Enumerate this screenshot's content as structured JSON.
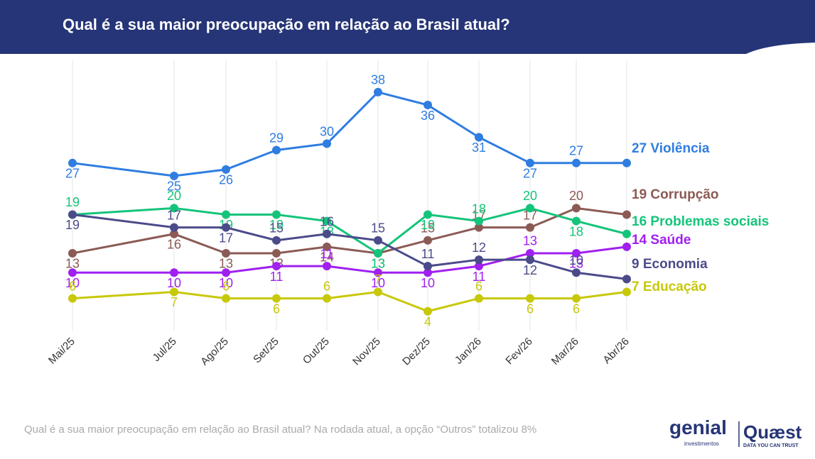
{
  "chart_data": {
    "type": "line",
    "title": "Qual é a sua maior preocupação em relação ao Brasil atual?",
    "categories": [
      "Mai/25",
      "Jul/25",
      "Ago/25",
      "Set/25",
      "Out/25",
      "Nov/25",
      "Dez/25",
      "Jan/26",
      "Fev/26",
      "Mar/26",
      "Abr/26"
    ],
    "series": [
      {
        "name": "Violência",
        "color": "#2f7de1",
        "values": [
          27,
          25,
          26,
          29,
          30,
          38,
          36,
          31,
          27,
          27,
          27
        ]
      },
      {
        "name": "Corrupção",
        "color": "#8b5a55",
        "values": [
          13,
          16,
          13,
          13,
          14,
          13,
          15,
          17,
          17,
          20,
          19
        ]
      },
      {
        "name": "Problemas sociais",
        "color": "#14c47a",
        "values": [
          19,
          20,
          19,
          19,
          18,
          13,
          19,
          18,
          20,
          18,
          16
        ]
      },
      {
        "name": "Saúde",
        "color": "#a020f0",
        "values": [
          10,
          10,
          10,
          11,
          11,
          10,
          10,
          11,
          13,
          13,
          14
        ]
      },
      {
        "name": "Economia",
        "color": "#4b4b8a",
        "values": [
          19,
          17,
          17,
          15,
          16,
          15,
          11,
          12,
          12,
          10,
          9
        ]
      },
      {
        "name": "Educação",
        "color": "#c8c80a",
        "values": [
          6,
          7,
          6,
          6,
          6,
          7,
          4,
          6,
          6,
          6,
          7
        ]
      }
    ],
    "ylim": [
      1,
      42.5
    ],
    "grid": true
  },
  "footer": "Qual é a sua maior preocupação em relação ao Brasil atual? Na rodada atual, a opção “Outros” totalizou 8%",
  "logos": {
    "genial": "genial",
    "genial_sub": "investimentos",
    "quaest": "Quæst",
    "quaest_sub": "DATA YOU CAN TRUST"
  }
}
